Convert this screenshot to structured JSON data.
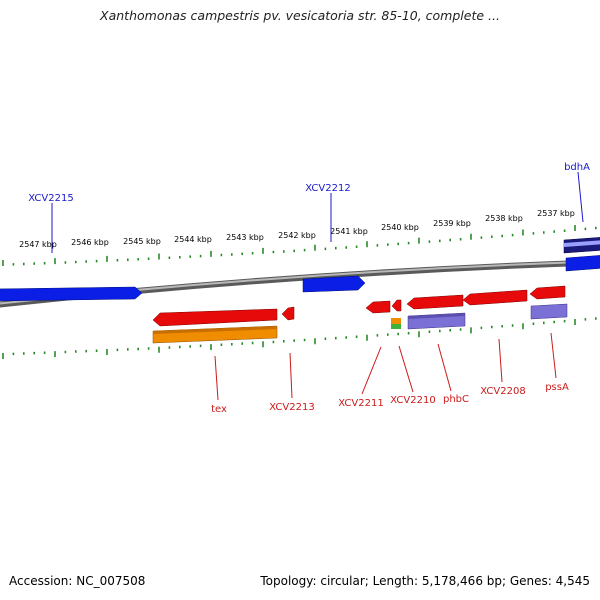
{
  "title": "Xanthomonas campestris pv. vesicatoria str. 85-10, complete ...",
  "footer": {
    "accession": "Accession: NC_007508",
    "summary": "Topology: circular; Length: 5,178,466 bp; Genes: 4,545"
  },
  "colors": {
    "backbone": "#8a8a8a",
    "forward_gene": "#0a1ee6",
    "reverse_gene": "#e60a0a",
    "orange_feature": "#f08c00",
    "purple_feature": "#7a70d6",
    "tick_green": "#2a8a2a",
    "label_blue": "#1a1acc",
    "label_red": "#cc1a1a"
  },
  "scale_labels": [
    "2547 kbp",
    "2546 kbp",
    "2545 kbp",
    "2544 kbp",
    "2543 kbp",
    "2542 kbp",
    "2541 kbp",
    "2540 kbp",
    "2539 kbp",
    "2538 kbp",
    "2537 kbp"
  ],
  "forward_gene_labels": [
    "XCV2215",
    "XCV2212",
    "bdhA"
  ],
  "reverse_gene_labels": [
    "tex",
    "XCV2213",
    "XCV2211",
    "XCV2210",
    "phbC",
    "XCV2208",
    "pssA"
  ]
}
